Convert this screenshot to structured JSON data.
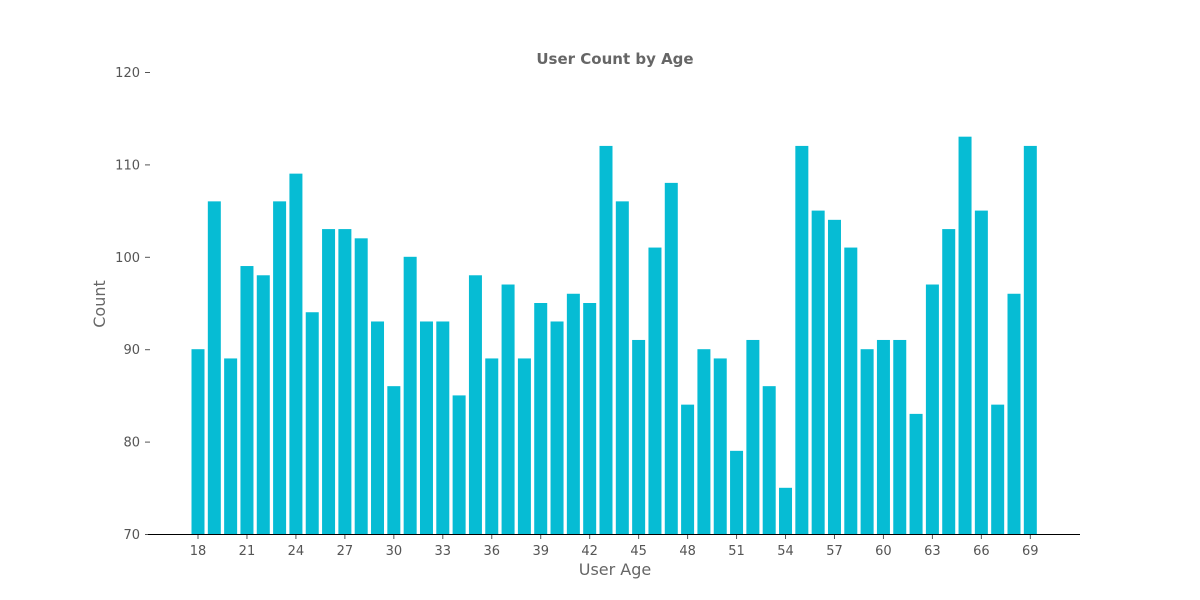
{
  "chart_data": {
    "type": "bar",
    "title": "User Count by Age",
    "xlabel": "User Age",
    "ylabel": "Count",
    "x": [
      18,
      19,
      20,
      21,
      22,
      23,
      24,
      25,
      26,
      27,
      28,
      29,
      30,
      31,
      32,
      33,
      34,
      35,
      36,
      37,
      38,
      39,
      40,
      41,
      42,
      43,
      44,
      45,
      46,
      47,
      48,
      49,
      50,
      51,
      52,
      53,
      54,
      55,
      56,
      57,
      58,
      59,
      60,
      61,
      62,
      63,
      64,
      65,
      66,
      67,
      68,
      69
    ],
    "values": [
      90,
      106,
      89,
      99,
      98,
      106,
      109,
      94,
      103,
      103,
      102,
      93,
      86,
      100,
      93,
      93,
      85,
      98,
      89,
      97,
      89,
      95,
      93,
      96,
      95,
      112,
      106,
      91,
      101,
      108,
      84,
      90,
      89,
      79,
      91,
      86,
      75,
      112,
      105,
      104,
      101,
      90,
      91,
      91,
      83,
      97,
      103,
      113,
      105,
      84,
      96,
      112
    ],
    "xticks": [
      18,
      21,
      24,
      27,
      30,
      33,
      36,
      39,
      42,
      45,
      48,
      51,
      54,
      57,
      60,
      63,
      66,
      69
    ],
    "yticks": [
      70,
      80,
      90,
      100,
      110,
      120
    ],
    "ylim": [
      70,
      120
    ],
    "grid": false,
    "bar_color": "#06bcd4",
    "text_color": "#666666"
  }
}
